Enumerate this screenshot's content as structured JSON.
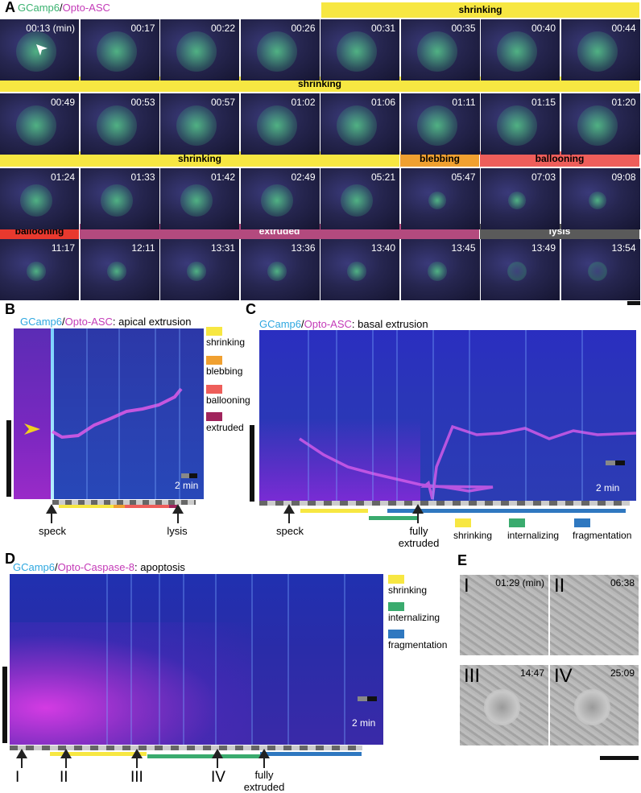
{
  "panels": {
    "A": {
      "letter": "A",
      "title_green": "GCamp6",
      "title_sep": "/",
      "title_magenta": "Opto-ASC",
      "rows": [
        {
          "bars": [
            {
              "label": "shrinking",
              "color": "#f7e742"
            }
          ],
          "times": [
            "00:13 (min)",
            "00:17",
            "00:22",
            "00:26",
            "00:31",
            "00:35",
            "00:40",
            "00:44"
          ]
        },
        {
          "bars": [
            {
              "label": "shrinking",
              "color": "#f7e742"
            }
          ],
          "times": [
            "00:49",
            "00:53",
            "00:57",
            "01:02",
            "01:06",
            "01:11",
            "01:15",
            "01:20"
          ]
        },
        {
          "bars": [
            {
              "label": "shrinking",
              "color": "#f7e742"
            },
            {
              "label": "blebbing",
              "color": "#f0a030"
            },
            {
              "label": "ballooning",
              "color": "#ee5e5a"
            }
          ],
          "times": [
            "01:24",
            "01:33",
            "01:42",
            "02:49",
            "05:21",
            "05:47",
            "07:03",
            "09:08"
          ]
        },
        {
          "bars": [
            {
              "label": "ballooning",
              "color": "#e8392e"
            },
            {
              "label": "extruded",
              "color": "#b34a7e"
            },
            {
              "label": "lysis",
              "color": "#5a5a5a"
            }
          ],
          "times": [
            "11:17",
            "12:11",
            "13:31",
            "13:36",
            "13:40",
            "13:45",
            "13:49",
            "13:54"
          ]
        }
      ]
    },
    "B": {
      "letter": "B",
      "title_c": "GCamp6",
      "title_sep": "/",
      "title_m": "Opto-ASC",
      "title_rest": ": apical extrusion",
      "legend": [
        {
          "label": "shrinking",
          "color": "#f7e742"
        },
        {
          "label": "blebbing",
          "color": "#f0a030"
        },
        {
          "label": "ballooning",
          "color": "#ee5e5a"
        },
        {
          "label": "extruded",
          "color": "#a0245c"
        }
      ],
      "scale_label": "2 min",
      "arrows": [
        "speck",
        "lysis"
      ]
    },
    "C": {
      "letter": "C",
      "title_c": "GCamp6",
      "title_sep": "/",
      "title_m": "Opto-ASC",
      "title_rest": ": basal extrusion",
      "legend": [
        {
          "label": "shrinking",
          "color": "#f7e742"
        },
        {
          "label": "internalizing",
          "color": "#3aab6e"
        },
        {
          "label": "fragmentation",
          "color": "#2f78c0"
        }
      ],
      "scale_label": "2 min",
      "arrows": [
        "speck",
        "fully extruded"
      ]
    },
    "D": {
      "letter": "D",
      "title_c": "GCamp6",
      "title_sep": "/",
      "title_m": "Opto-Caspase-8",
      "title_rest": ": apoptosis",
      "legend": [
        {
          "label": "shrinking",
          "color": "#f7e742"
        },
        {
          "label": "internalizing",
          "color": "#3aab6e"
        },
        {
          "label": "fragmentation",
          "color": "#2f78c0"
        }
      ],
      "scale_label": "2 min",
      "arrows": [
        "I",
        "II",
        "III",
        "IV",
        "fully extruded"
      ]
    },
    "E": {
      "letter": "E",
      "frames": [
        {
          "roman": "I",
          "time": "01:29 (min)"
        },
        {
          "roman": "II",
          "time": "06:38"
        },
        {
          "roman": "III",
          "time": "14:47"
        },
        {
          "roman": "IV",
          "time": "25:09"
        }
      ]
    }
  }
}
